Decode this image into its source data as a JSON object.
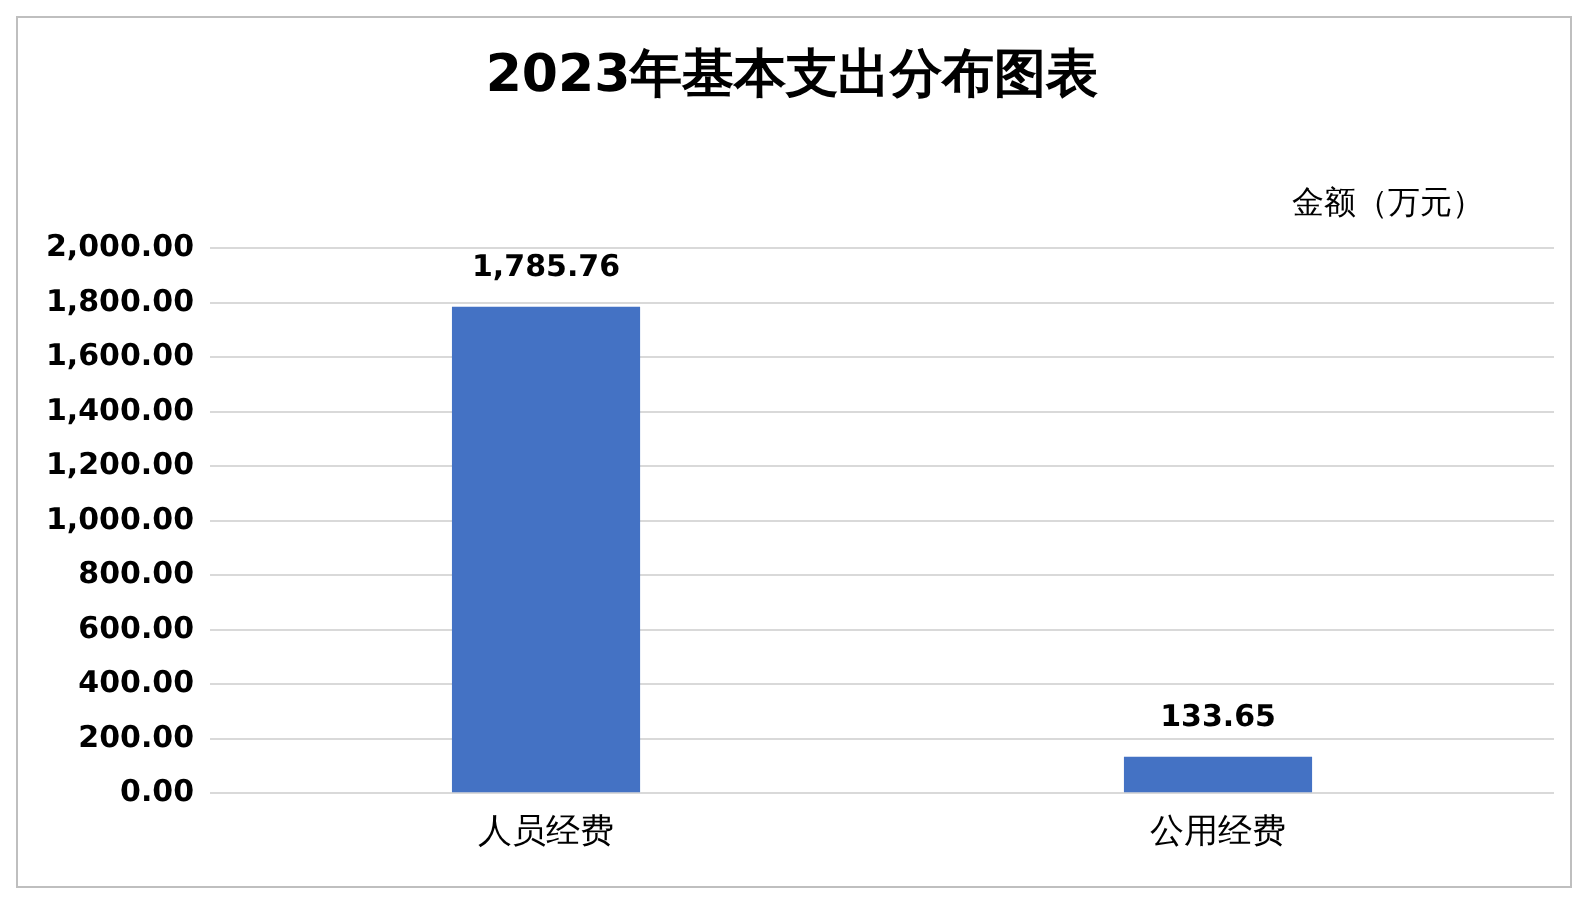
{
  "chart_data": {
    "type": "bar",
    "title": "2023年基本支出分布图表",
    "ylabel": "金额（万元）",
    "categories": [
      "人员经费",
      "公用经费"
    ],
    "values": [
      1785.76,
      133.65
    ],
    "color": "#4472c4",
    "value_labels": [
      "1,785.76",
      "133.65"
    ],
    "ylim": [
      0,
      2000
    ],
    "yticks": [
      {
        "value": 0,
        "label": "0.00"
      },
      {
        "value": 200,
        "label": "200.00"
      },
      {
        "value": 400,
        "label": "400.00"
      },
      {
        "value": 600,
        "label": "600.00"
      },
      {
        "value": 800,
        "label": "800.00"
      },
      {
        "value": 1000,
        "label": "1,000.00"
      },
      {
        "value": 1200,
        "label": "1,200.00"
      },
      {
        "value": 1400,
        "label": "1,400.00"
      },
      {
        "value": 1600,
        "label": "1,600.00"
      },
      {
        "value": 1800,
        "label": "1,800.00"
      },
      {
        "value": 2000,
        "label": "2,000.00"
      }
    ],
    "grid": "y",
    "legend": false
  }
}
